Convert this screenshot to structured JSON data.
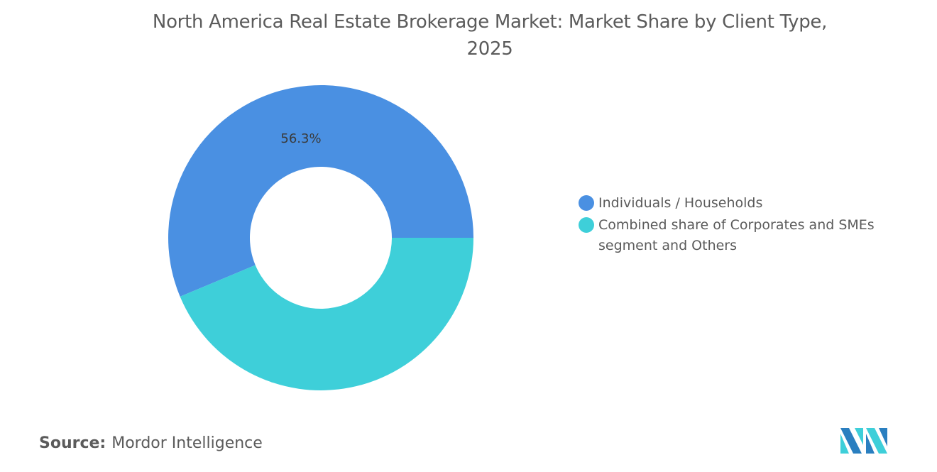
{
  "chart_data": {
    "type": "pie",
    "variant": "donut",
    "title": "North America Real Estate Brokerage Market: Market Share by Client Type, 2025",
    "title_lines": [
      "North America Real Estate Brokerage Market: Market Share by Client Type,",
      "2025"
    ],
    "slices": [
      {
        "name": "Individuals / Households",
        "value": 56.3,
        "label": "56.3%",
        "color": "#4a90e2"
      },
      {
        "name": "Combined share of Corporates and SMEs segment and Others",
        "value": 43.7,
        "label": "",
        "color": "#3ecfd9"
      }
    ],
    "legend_placement": "right"
  },
  "footer": {
    "source_label": "Source:",
    "source_value": "Mordor Intelligence"
  },
  "logo": {
    "brand": "Mordor Intelligence",
    "colors": [
      "#2a7fc0",
      "#3ecfd9"
    ]
  }
}
